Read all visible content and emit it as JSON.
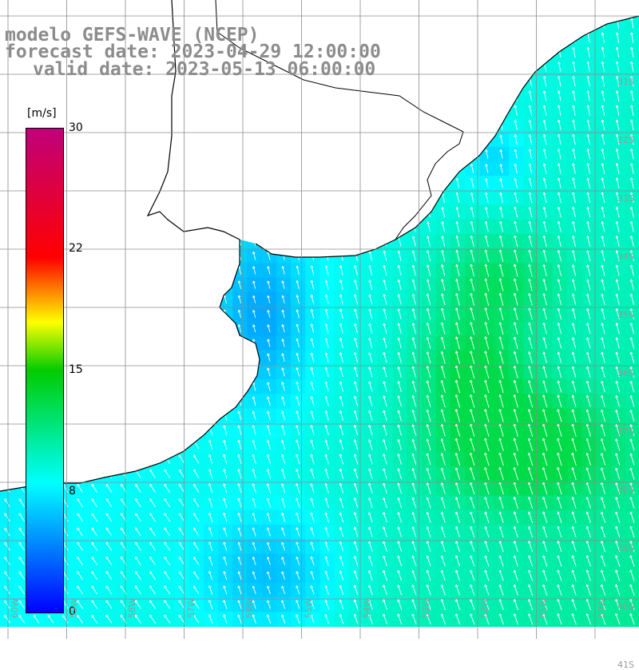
{
  "title": {
    "line1": "modelo GEFS-WAVE (NCEP)",
    "line2": "forecast date: 2023-04-29 12:00:00",
    "line3": "valid date: 2023-05-13 06:00:00"
  },
  "colorbar": {
    "unit": "[m/s]",
    "min": 0,
    "max": 30,
    "ticks": [
      "30",
      "22",
      "15",
      "8",
      "0"
    ],
    "colors": [
      "#0000ff",
      "#00ffff",
      "#00cc00",
      "#ffff00",
      "#ff0000",
      "#c0007a"
    ]
  },
  "grid": {
    "lat_labels": [
      "31S",
      "32S",
      "33S",
      "34S",
      "35S",
      "36S",
      "37S",
      "38S",
      "39S",
      "40S",
      "41S"
    ],
    "lon_labels": [
      "60W",
      "59W",
      "58W",
      "57W",
      "56W",
      "55W",
      "54W",
      "53W",
      "52W",
      "51W",
      "50W"
    ],
    "line_color": "#8c8c8c"
  },
  "colors": {
    "coast": "#000000",
    "land": "#ffffff",
    "arrow": "#ffffff"
  }
}
